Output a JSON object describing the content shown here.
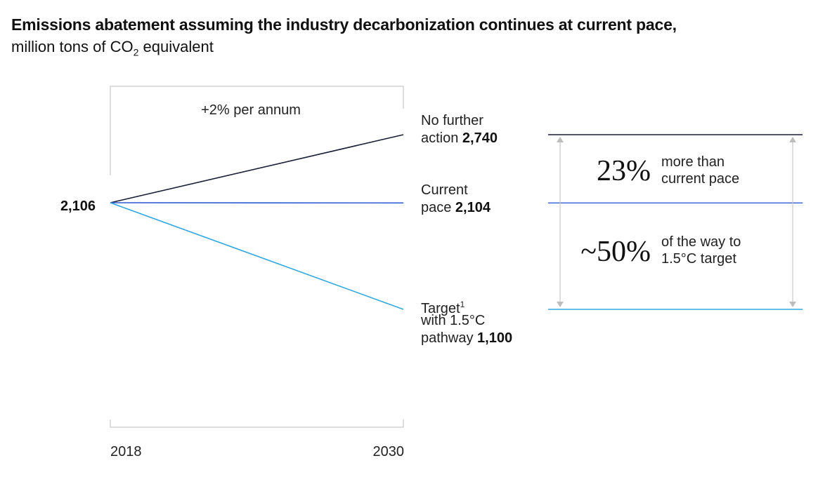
{
  "chart_data": {
    "type": "line",
    "title": "Emissions abatement assuming the industry decarbonization continues at current pace,",
    "subtitle_prefix": "million tons of CO",
    "subtitle_sub": "2",
    "subtitle_suffix": " equivalent",
    "x": [
      2018,
      2030
    ],
    "x_tick_labels": [
      "2018",
      "2030"
    ],
    "start_label": "2,106",
    "growth_annotation": "+2% per annum",
    "series": [
      {
        "name": "No further action",
        "values": [
          2106,
          2740
        ],
        "color": "#1a1f36",
        "label_lines": [
          "No further",
          "action"
        ],
        "value_label": "2,740"
      },
      {
        "name": "Current pace",
        "values": [
          2106,
          2104
        ],
        "color": "#2f5bd3",
        "label_lines": [
          "Current",
          "pace"
        ],
        "value_label": "2,104"
      },
      {
        "name": "Target with 1.5°C pathway",
        "values": [
          2106,
          1100
        ],
        "color": "#31a8e0",
        "label_lines": [
          "Target",
          "with 1.5°C",
          "pathway"
        ],
        "footnote": "1",
        "value_label": "1,100"
      }
    ],
    "annotations": [
      {
        "big": "23%",
        "text_lines": [
          "more than",
          "current pace"
        ]
      },
      {
        "big": "~50%",
        "text_lines": [
          "of the way to",
          "1.5°C target"
        ]
      }
    ],
    "ylim": [
      1100,
      2740
    ]
  }
}
